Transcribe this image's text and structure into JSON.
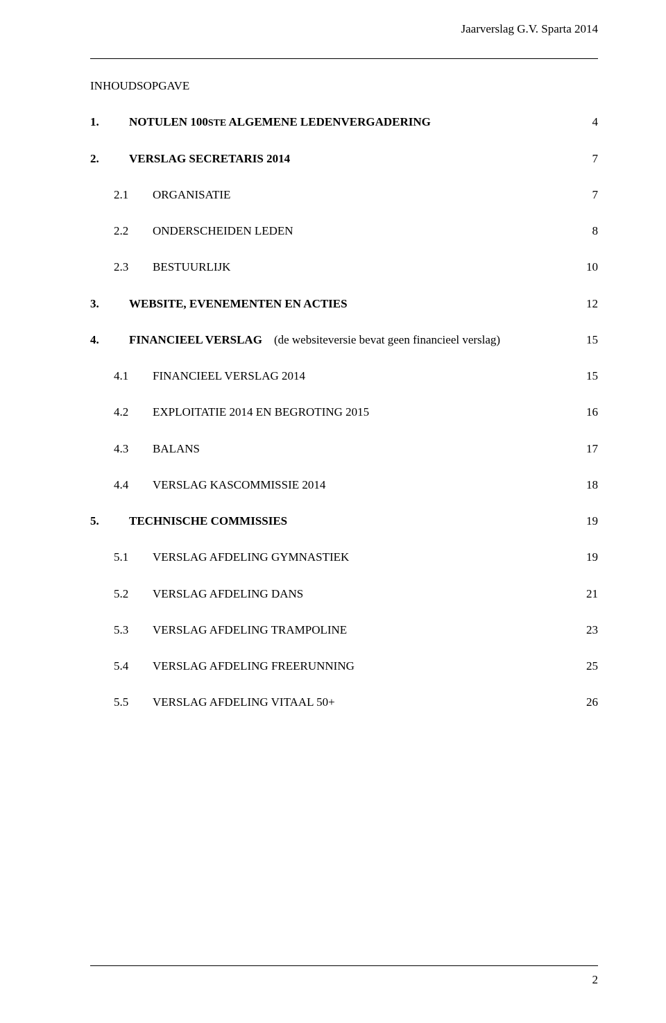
{
  "header": {
    "right": "Jaarverslag G.V. Sparta 2014"
  },
  "toc_heading": "INHOUDSOPGAVE",
  "sections": {
    "s1": {
      "num": "1.",
      "label_prefix": "NOTULEN 100",
      "label_small": "STE",
      "label_suffix": " ALGEMENE LEDENVERGADERING",
      "page": "4"
    },
    "s2": {
      "num": "2.",
      "label": "VERSLAG SECRETARIS 2014",
      "page": "7",
      "subs": {
        "a": {
          "num": "2.1",
          "label": "ORGANISATIE",
          "page": "7"
        },
        "b": {
          "num": "2.2",
          "label": "ONDERSCHEIDEN LEDEN",
          "page": "8"
        },
        "c": {
          "num": "2.3",
          "label": "BESTUURLIJK",
          "page": "10"
        }
      }
    },
    "s3": {
      "num": "3.",
      "label": "WEBSITE,  EVENEMENTEN EN ACTIES",
      "page": "12"
    },
    "s4": {
      "num": "4.",
      "label_prefix": "FINANCIEEL VERSLAG",
      "label_paren": "    (de websiteversie bevat geen financieel verslag)",
      "page": "15",
      "subs": {
        "a": {
          "num": "4.1",
          "label": "FINANCIEEL VERSLAG 2014",
          "page": "15"
        },
        "b": {
          "num": "4.2",
          "label": "EXPLOITATIE 2014 EN BEGROTING 2015",
          "page": "16"
        },
        "c": {
          "num": "4.3",
          "label": "BALANS",
          "page": "17"
        },
        "d": {
          "num": "4.4",
          "label": "VERSLAG KASCOMMISSIE 2014",
          "page": "18"
        }
      }
    },
    "s5": {
      "num": "5.",
      "label": "TECHNISCHE COMMISSIES",
      "page": "19",
      "subs": {
        "a": {
          "num": "5.1",
          "label": "VERSLAG AFDELING GYMNASTIEK",
          "page": "19"
        },
        "b": {
          "num": "5.2",
          "label": "VERSLAG AFDELING DANS",
          "page": "21"
        },
        "c": {
          "num": "5.3",
          "label": "VERSLAG AFDELING TRAMPOLINE",
          "page": "23"
        },
        "d": {
          "num": "5.4",
          "label": "VERSLAG AFDELING FREERUNNING",
          "page": "25"
        },
        "e": {
          "num": "5.5",
          "label": "VERSLAG AFDELING VITAAL 50+",
          "page": "26"
        }
      }
    }
  },
  "footer": {
    "page_number": "2"
  }
}
